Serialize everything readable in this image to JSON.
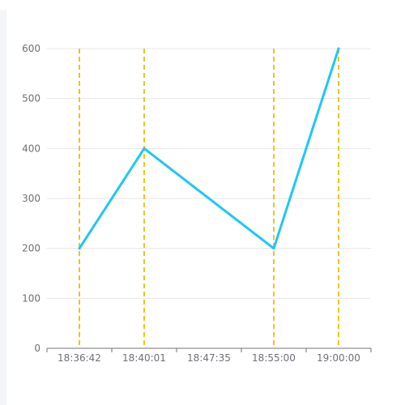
{
  "chart_data": {
    "type": "line",
    "title": "",
    "xlabel": "",
    "ylabel": "",
    "categories": [
      "18:36:42",
      "18:40:01",
      "18:47:35",
      "18:55:00",
      "19:00:00"
    ],
    "ylim": [
      0,
      600
    ],
    "yticks": [
      0,
      100,
      200,
      300,
      400,
      500,
      600
    ],
    "grid": true,
    "series": [
      {
        "values": [
          {
            "x": "18:36:42",
            "y": 200
          },
          {
            "x": "18:40:01",
            "y": 400
          },
          {
            "x": "18:55:00",
            "y": 200
          },
          {
            "x": "19:00:00",
            "y": 600
          }
        ]
      }
    ],
    "marklines": [
      "18:36:42",
      "18:40:01",
      "18:55:00",
      "19:00:00"
    ],
    "colors": {
      "line": "#1ec8f2",
      "markline": "#f0c419",
      "grid": "#e6e6e6",
      "axis": "#6e7079",
      "label": "#6e7079"
    }
  }
}
